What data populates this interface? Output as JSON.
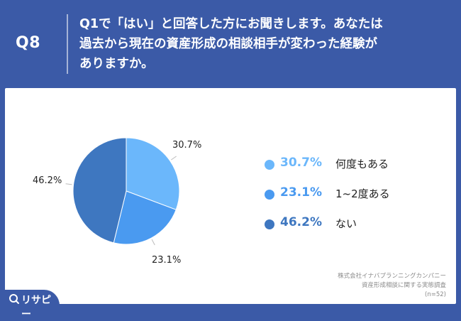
{
  "header": {
    "question_number": "Q8",
    "question_line1": "Q1で「はい」と回答した方にお聞きします。あなたは",
    "question_line2": "過去から現在の資産形成の相談相手が変わった経験が",
    "question_line3": "ありますか。"
  },
  "colors": {
    "header_bg": "#3b5aa7",
    "slice_1": "#6bb7fb",
    "slice_2": "#4a9af0",
    "slice_3": "#3e77c0"
  },
  "chart_data": {
    "type": "pie",
    "categories": [
      "何度もある",
      "1~2度ある",
      "ない"
    ],
    "values": [
      30.7,
      23.1,
      46.2
    ],
    "labels": [
      "30.7%",
      "23.1%",
      "46.2%"
    ]
  },
  "legend": [
    {
      "pct": "30.7%",
      "label": "何度もある"
    },
    {
      "pct": "23.1%",
      "label": "1~2度ある"
    },
    {
      "pct": "46.2%",
      "label": "ない"
    }
  ],
  "source": {
    "company": "株式会社イナバプランニングカンパニー",
    "survey": "資産形成相談に関する実態調査",
    "n": "(n=52)"
  },
  "brand": {
    "name": "リサピー",
    "icon": "magnifier-icon"
  }
}
